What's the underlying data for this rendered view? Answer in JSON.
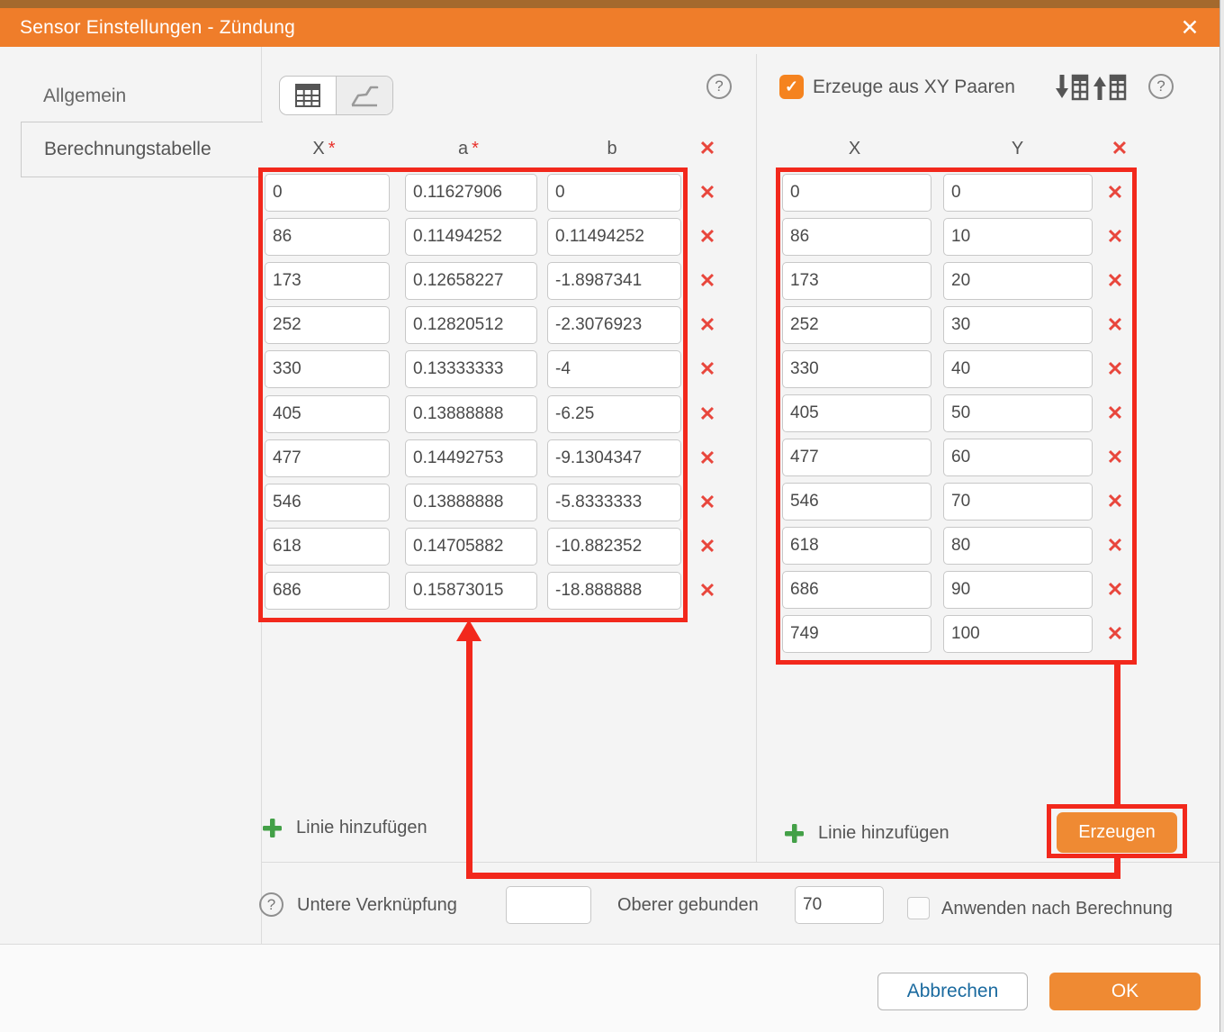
{
  "titlebar": {
    "title": "Sensor Einstellungen - Zündung",
    "close_icon": "✕"
  },
  "sidebar": {
    "items": [
      {
        "label": "Allgemein",
        "selected": false
      },
      {
        "label": "Berechnungstabelle",
        "selected": true
      }
    ]
  },
  "left_panel": {
    "help_icon": "?",
    "columns": {
      "x": "X",
      "x_required": "*",
      "a": "a",
      "a_required": "*",
      "b": "b",
      "delete_all": "✕"
    },
    "rows": [
      {
        "x": "0",
        "a": "0.11627906",
        "b": "0"
      },
      {
        "x": "86",
        "a": "0.11494252",
        "b": "0.11494252"
      },
      {
        "x": "173",
        "a": "0.12658227",
        "b": "-1.8987341"
      },
      {
        "x": "252",
        "a": "0.12820512",
        "b": "-2.3076923"
      },
      {
        "x": "330",
        "a": "0.13333333",
        "b": "-4"
      },
      {
        "x": "405",
        "a": "0.13888888",
        "b": "-6.25"
      },
      {
        "x": "477",
        "a": "0.14492753",
        "b": "-9.1304347"
      },
      {
        "x": "546",
        "a": "0.13888888",
        "b": "-5.8333333"
      },
      {
        "x": "618",
        "a": "0.14705882",
        "b": "-10.882352"
      },
      {
        "x": "686",
        "a": "0.15873015",
        "b": "-18.888888"
      }
    ],
    "delete_row_icon": "✕",
    "add_line_label": "Linie hinzufügen"
  },
  "right_panel": {
    "generate_checkbox": {
      "checked": true,
      "check_icon": "✓",
      "label": "Erzeuge aus XY Paaren"
    },
    "help_icon": "?",
    "columns": {
      "x": "X",
      "y": "Y",
      "delete_all": "✕"
    },
    "rows": [
      {
        "x": "0",
        "y": "0"
      },
      {
        "x": "86",
        "y": "10"
      },
      {
        "x": "173",
        "y": "20"
      },
      {
        "x": "252",
        "y": "30"
      },
      {
        "x": "330",
        "y": "40"
      },
      {
        "x": "405",
        "y": "50"
      },
      {
        "x": "477",
        "y": "60"
      },
      {
        "x": "546",
        "y": "70"
      },
      {
        "x": "618",
        "y": "80"
      },
      {
        "x": "686",
        "y": "90"
      },
      {
        "x": "749",
        "y": "100"
      }
    ],
    "delete_row_icon": "✕",
    "add_line_label": "Linie hinzufügen",
    "generate_button_label": "Erzeugen"
  },
  "bottom_bar": {
    "help_icon": "?",
    "lower_link_label": "Untere Verknüpfung",
    "lower_link_value": "",
    "upper_bound_label": "Oberer gebunden",
    "upper_bound_value": "70",
    "apply_checkbox": {
      "checked": false,
      "label": "Anwenden nach Berechnung"
    }
  },
  "footer": {
    "cancel_label": "Abbrechen",
    "ok_label": "OK"
  },
  "colors": {
    "titlebar_orange": "#ef7d2a",
    "accent_orange": "#ef8a33",
    "checkbox_orange": "#f5831f",
    "highlight_red": "#f2281c",
    "delete_red": "#e8463c",
    "plus_green": "#43a047",
    "cancel_text_blue": "#1a6a9f"
  }
}
